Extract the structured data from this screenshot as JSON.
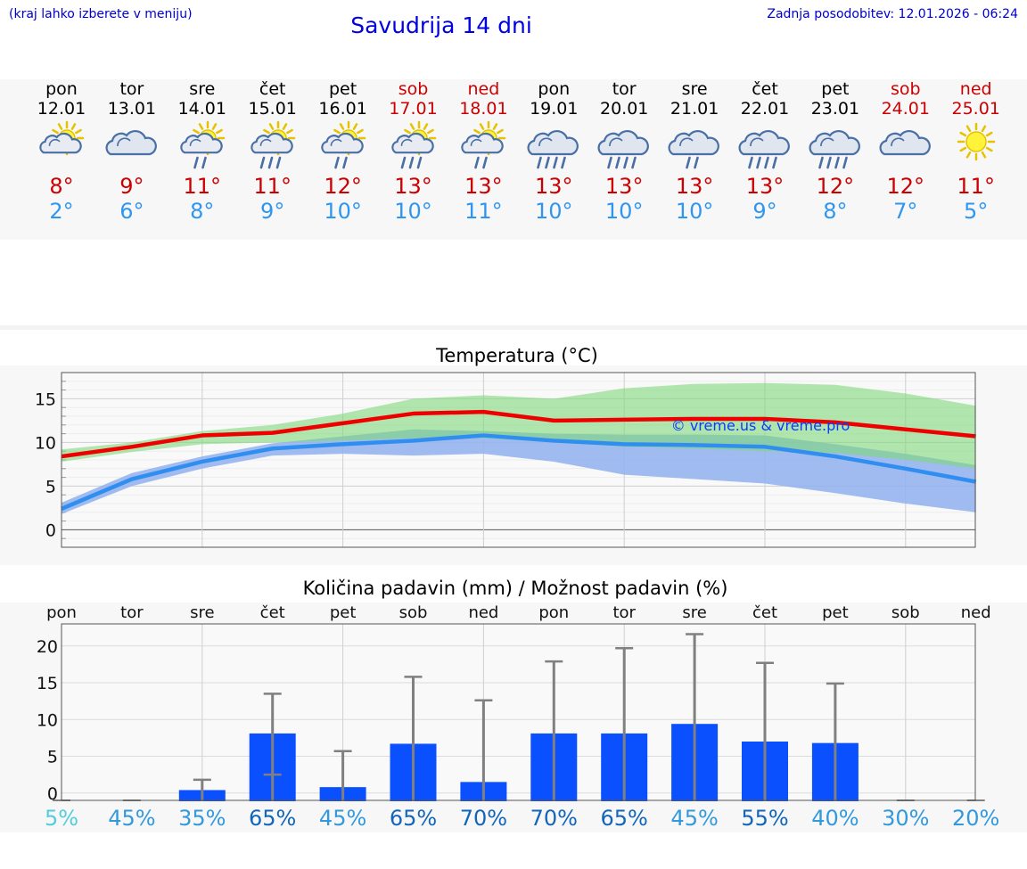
{
  "header": {
    "hint": "(kraj lahko izberete v meniju)",
    "title": "Savudrija 14 dni",
    "updated": "Zadnja posodobitev: 12.01.2026 - 06:24"
  },
  "days": [
    {
      "name": "pon",
      "date": "12.01",
      "weekend": false,
      "icon": "sun-cloud-icon",
      "tmax": "8°",
      "tmin": "2°"
    },
    {
      "name": "tor",
      "date": "13.01",
      "weekend": false,
      "icon": "cloud-icon",
      "tmax": "9°",
      "tmin": "6°"
    },
    {
      "name": "sre",
      "date": "14.01",
      "weekend": false,
      "icon": "sun-cloud-light-rain-icon",
      "tmax": "11°",
      "tmin": "8°"
    },
    {
      "name": "čet",
      "date": "15.01",
      "weekend": false,
      "icon": "sun-cloud-rain-icon",
      "tmax": "11°",
      "tmin": "9°"
    },
    {
      "name": "pet",
      "date": "16.01",
      "weekend": false,
      "icon": "sun-cloud-light-rain-icon",
      "tmax": "12°",
      "tmin": "10°"
    },
    {
      "name": "sob",
      "date": "17.01",
      "weekend": true,
      "icon": "sun-cloud-rain-icon",
      "tmax": "13°",
      "tmin": "10°"
    },
    {
      "name": "ned",
      "date": "18.01",
      "weekend": true,
      "icon": "sun-cloud-light-rain-icon",
      "tmax": "13°",
      "tmin": "11°"
    },
    {
      "name": "pon",
      "date": "19.01",
      "weekend": false,
      "icon": "cloud-rain-icon",
      "tmax": "13°",
      "tmin": "10°"
    },
    {
      "name": "tor",
      "date": "20.01",
      "weekend": false,
      "icon": "cloud-rain-icon",
      "tmax": "13°",
      "tmin": "10°"
    },
    {
      "name": "sre",
      "date": "21.01",
      "weekend": false,
      "icon": "cloud-light-rain-icon",
      "tmax": "13°",
      "tmin": "10°"
    },
    {
      "name": "čet",
      "date": "22.01",
      "weekend": false,
      "icon": "cloud-rain-icon",
      "tmax": "13°",
      "tmin": "9°"
    },
    {
      "name": "pet",
      "date": "23.01",
      "weekend": false,
      "icon": "cloud-rain-icon",
      "tmax": "12°",
      "tmin": "8°"
    },
    {
      "name": "sob",
      "date": "24.01",
      "weekend": true,
      "icon": "cloud-icon",
      "tmax": "12°",
      "tmin": "7°"
    },
    {
      "name": "ned",
      "date": "25.01",
      "weekend": true,
      "icon": "sun-icon",
      "tmax": "11°",
      "tmin": "5°"
    }
  ],
  "colors": {
    "tmax": "#cc0000",
    "tmin": "#2f96f0",
    "weekend": "#cc0000",
    "max_line": "#ee0000",
    "min_line": "#2f8ef0",
    "max_band": "#96e090",
    "min_band": "#8fb0ee",
    "overlap_band": "#6fbfa0",
    "bar": "#0a50ff",
    "whisker": "#808080"
  },
  "chart_data": [
    {
      "type": "line",
      "title": "Temperatura (°C)",
      "watermark": "© vreme.us & vreme.pro",
      "ylim": [
        -2,
        18
      ],
      "yticks": [
        0,
        5,
        10,
        15
      ],
      "x": [
        0,
        1,
        2,
        3,
        4,
        5,
        6,
        7,
        8,
        9,
        10,
        11,
        12,
        13
      ],
      "series": [
        {
          "name": "max",
          "values": [
            8.4,
            9.5,
            10.8,
            11.1,
            12.2,
            13.3,
            13.5,
            12.5,
            12.6,
            12.7,
            12.7,
            12.3,
            11.5,
            10.7
          ],
          "band_low": [
            7.8,
            8.9,
            9.8,
            10.0,
            10.2,
            10.5,
            10.5,
            10.0,
            9.5,
            9.3,
            9.0,
            8.8,
            8.0,
            7.0
          ],
          "band_high": [
            9.2,
            10.0,
            11.3,
            12.0,
            13.3,
            15.0,
            15.4,
            15.0,
            16.2,
            16.7,
            16.8,
            16.6,
            15.6,
            14.2
          ]
        },
        {
          "name": "min",
          "values": [
            2.4,
            5.8,
            7.8,
            9.3,
            9.8,
            10.2,
            10.8,
            10.2,
            9.8,
            9.7,
            9.5,
            8.4,
            7.0,
            5.5
          ],
          "band_low": [
            1.8,
            5.0,
            7.0,
            8.5,
            8.7,
            8.5,
            8.7,
            7.8,
            6.3,
            5.8,
            5.3,
            4.2,
            3.0,
            2.0
          ],
          "band_high": [
            3.1,
            6.5,
            8.4,
            9.9,
            10.7,
            11.5,
            11.3,
            11.0,
            10.9,
            10.9,
            10.8,
            9.8,
            8.7,
            7.4
          ]
        }
      ]
    },
    {
      "type": "bar",
      "title": "Količina padavin (mm) / Možnost padavin (%)",
      "categories": [
        "pon",
        "tor",
        "sre",
        "čet",
        "pet",
        "sob",
        "ned",
        "pon",
        "tor",
        "sre",
        "čet",
        "pet",
        "sob",
        "ned"
      ],
      "ylim": [
        -1,
        23
      ],
      "yticks": [
        0,
        5,
        10,
        15,
        20
      ],
      "values": [
        0,
        0,
        0.4,
        8.1,
        0.8,
        6.7,
        1.5,
        8.1,
        8.1,
        9.4,
        7.0,
        6.8,
        0,
        0
      ],
      "err_low": [
        0,
        0,
        0,
        2.5,
        0,
        0,
        0,
        0,
        0,
        0,
        0,
        0,
        0,
        0
      ],
      "err_high": [
        0,
        0,
        1.8,
        13.5,
        5.7,
        15.8,
        12.6,
        17.9,
        19.7,
        21.6,
        17.7,
        14.9,
        0,
        0
      ],
      "probabilities": [
        "5%",
        "45%",
        "35%",
        "65%",
        "45%",
        "65%",
        "70%",
        "70%",
        "65%",
        "45%",
        "55%",
        "40%",
        "30%",
        "20%"
      ],
      "probability_colors": [
        "#55ccdd",
        "#3399dd",
        "#3399dd",
        "#1166bb",
        "#3399dd",
        "#1166bb",
        "#1166bb",
        "#1166bb",
        "#1166bb",
        "#3399dd",
        "#1166bb",
        "#3399dd",
        "#3399dd",
        "#3399dd"
      ]
    }
  ]
}
